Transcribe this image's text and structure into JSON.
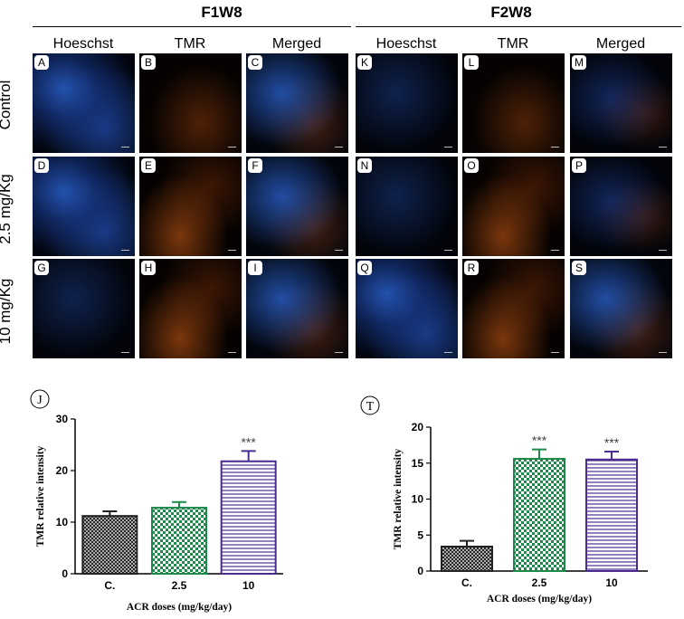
{
  "figure": {
    "groups": [
      {
        "title": "F1W8",
        "columns": [
          "Hoeschst",
          "TMR",
          "Merged"
        ]
      },
      {
        "title": "F2W8",
        "columns": [
          "Hoeschst",
          "TMR",
          "Merged"
        ]
      }
    ],
    "row_labels": [
      "Control",
      "2.5 mg/Kg",
      "10 mg/Kg"
    ],
    "panel_letters": [
      [
        "A",
        "B",
        "C",
        "K",
        "L",
        "M"
      ],
      [
        "D",
        "E",
        "F",
        "N",
        "O",
        "P"
      ],
      [
        "G",
        "H",
        "I",
        "Q",
        "R",
        "S"
      ]
    ]
  },
  "chart_data": [
    {
      "type": "bar",
      "panel_label": "J",
      "categories": [
        "C.",
        "2.5",
        "10"
      ],
      "values": [
        11.2,
        12.8,
        21.8
      ],
      "errors": [
        0.9,
        1.1,
        2.0
      ],
      "significance": [
        "",
        "",
        "***"
      ],
      "ylabel": "TMR relative intensity",
      "xlabel": "ACR doses (mg/kg/day)",
      "ylim": [
        0,
        30
      ],
      "yticks": [
        0,
        10,
        20,
        30
      ],
      "bar_patterns": [
        "crosshatch",
        "checker",
        "horizontal-lines"
      ],
      "bar_colors": [
        "#222222",
        "#1e8a4a",
        "#4b2c8f"
      ]
    },
    {
      "type": "bar",
      "panel_label": "T",
      "categories": [
        "C.",
        "2.5",
        "10"
      ],
      "values": [
        3.4,
        15.6,
        15.5
      ],
      "errors": [
        0.8,
        1.3,
        1.1
      ],
      "significance": [
        "",
        "***",
        "***"
      ],
      "ylabel": "TMR relative intensity",
      "xlabel": "ACR doses (mg/kg/day)",
      "ylim": [
        0,
        20
      ],
      "yticks": [
        0,
        5,
        10,
        15,
        20
      ],
      "bar_patterns": [
        "crosshatch",
        "checker",
        "horizontal-lines"
      ],
      "bar_colors": [
        "#222222",
        "#1e8a4a",
        "#4b2c8f"
      ]
    }
  ]
}
